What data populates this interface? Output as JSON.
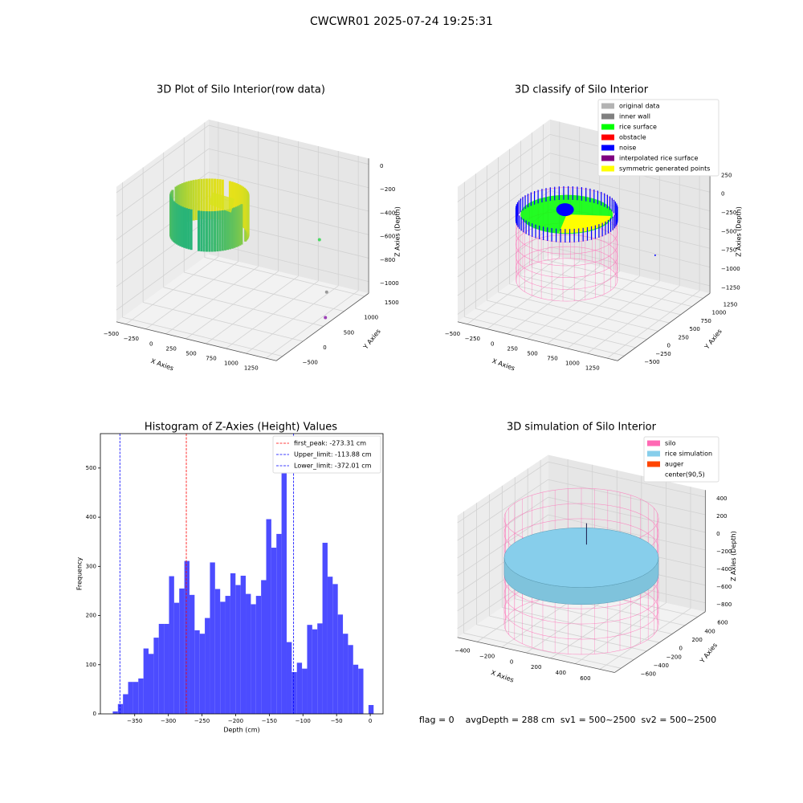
{
  "title": "CWCWR01 2025-07-24 19:25:31",
  "footer": "flag = 0    avgDepth = 288 cm  sv1 = 500~2500  sv2 = 500~2500",
  "chart_data": [
    {
      "type": "scatter3d",
      "title": "3D Plot of Silo Interior(row data)",
      "xlabel": "X Axies",
      "ylabel": "Y Axies",
      "zlabel": "Z Axies (Depth)",
      "xlim": [
        -620,
        1380
      ],
      "ylim": [
        -650,
        1600
      ],
      "zlim": [
        -1100,
        50
      ],
      "xticks": [
        {
          "value": -500,
          "label": "−500"
        },
        {
          "value": -250,
          "label": "−250"
        },
        0,
        250,
        500,
        750,
        1000,
        1250
      ],
      "yticks": [
        {
          "value": -500,
          "label": "−500"
        },
        0,
        500,
        1000,
        1500
      ],
      "zticks": [
        0,
        {
          "value": -200,
          "label": "−200"
        },
        {
          "value": -400,
          "label": "−400"
        },
        {
          "value": -600,
          "label": "−600"
        },
        {
          "value": -800,
          "label": "−800"
        },
        {
          "value": -1000,
          "label": "−1000"
        }
      ]
    },
    {
      "type": "scatter3d",
      "title": "3D classify of Silo Interior",
      "xlabel": "X Axies",
      "ylabel": "Y Axies",
      "zlabel": "Z Axies (Depth)",
      "xlim": [
        -620,
        1380
      ],
      "ylim": [
        -650,
        1400
      ],
      "zlim": [
        -1350,
        450
      ],
      "xticks": [
        {
          "value": -500,
          "label": "−500"
        },
        {
          "value": -250,
          "label": "−250"
        },
        0,
        250,
        500,
        750,
        1000,
        1250
      ],
      "yticks": [
        {
          "value": -500,
          "label": "−500"
        },
        {
          "value": -250,
          "label": "−250"
        },
        0,
        250,
        500,
        750,
        1000,
        1250
      ],
      "zticks": [
        250,
        0,
        {
          "value": -250,
          "label": "−250"
        },
        {
          "value": -500,
          "label": "−500"
        },
        {
          "value": -750,
          "label": "−750"
        },
        {
          "value": -1000,
          "label": "−1000"
        },
        {
          "value": -1250,
          "label": "−1250"
        }
      ],
      "legend": [
        {
          "name": "original data",
          "color": "#b3b3b3"
        },
        {
          "name": "inner wall",
          "color": "#808080"
        },
        {
          "name": "rice surface",
          "color": "#00ff00"
        },
        {
          "name": "obstacle",
          "color": "#ff0000"
        },
        {
          "name": "noise",
          "color": "#0000ff"
        },
        {
          "name": "interpolated rice surface",
          "color": "#800080"
        },
        {
          "name": "symmetric generated points",
          "color": "#ffff00"
        }
      ]
    },
    {
      "type": "histogram",
      "title": "Histogram of Z-Axies (Height) Values",
      "xlabel": "Depth (cm)",
      "ylabel": "Frequency",
      "color": "#4c4cff",
      "bins": [
        -382.6,
        -375.0,
        -367.4,
        -359.8,
        -352.2,
        -344.6,
        -337.0,
        -329.4,
        -321.8,
        -314.2,
        -306.6,
        -299.0,
        -291.4,
        -283.8,
        -276.2,
        -268.6,
        -261.0,
        -253.4,
        -245.8,
        -238.2,
        -230.6,
        -223.0,
        -215.4,
        -207.8,
        -200.2,
        -192.6,
        -185.0,
        -177.4,
        -169.8,
        -162.2,
        -154.6,
        -147.0,
        -139.4,
        -131.8,
        -124.2,
        -116.6,
        -109.0,
        -101.4,
        -93.8,
        -86.2,
        -78.6,
        -71.0,
        -63.4,
        -55.8,
        -48.2,
        -40.6,
        -33.0,
        -25.4,
        -17.8,
        -10.2,
        -2.6,
        5.0
      ],
      "values": [
        5,
        20,
        40,
        65,
        65,
        72,
        133,
        122,
        155,
        183,
        183,
        280,
        226,
        255,
        311,
        242,
        170,
        163,
        195,
        308,
        254,
        228,
        240,
        286,
        262,
        281,
        244,
        223,
        240,
        272,
        396,
        338,
        366,
        546,
        146,
        85,
        104,
        92,
        181,
        172,
        184,
        348,
        279,
        264,
        202,
        163,
        140,
        100,
        92,
        0,
        18
      ],
      "xlim": [
        -401,
        19
      ],
      "ylim": [
        0,
        570
      ],
      "xticks": [
        {
          "value": -350,
          "label": "−350"
        },
        {
          "value": -300,
          "label": "−300"
        },
        {
          "value": -250,
          "label": "−250"
        },
        {
          "value": -200,
          "label": "−200"
        },
        {
          "value": -150,
          "label": "−150"
        },
        {
          "value": -100,
          "label": "−100"
        },
        {
          "value": -50,
          "label": "−50"
        },
        0
      ],
      "yticks": [
        0,
        100,
        200,
        300,
        400,
        500
      ],
      "vlines": [
        {
          "name": "first_peak: -273.31 cm",
          "value": -273.31,
          "color": "#ff0000"
        },
        {
          "name": "Upper_limit: -113.88 cm",
          "value": -113.88,
          "color": "#0000ff"
        },
        {
          "name": "Lower_limit: -372.01 cm",
          "value": -372.01,
          "color": "#0000ff"
        }
      ],
      "legend_position": "upper right"
    },
    {
      "type": "surface3d",
      "title": "3D simulation of Silo Interior",
      "xlabel": "X Axies",
      "ylabel": "Y Axies",
      "zlabel": "Z Axies (Depth)",
      "xlim": [
        -560,
        720
      ],
      "ylim": [
        -700,
        720
      ],
      "zlim": [
        -900,
        480
      ],
      "xticks": [
        {
          "value": -400,
          "label": "−400"
        },
        {
          "value": -200,
          "label": "−200"
        },
        0,
        200,
        400,
        600
      ],
      "yticks": [
        {
          "value": -600,
          "label": "−600"
        },
        {
          "value": -400,
          "label": "−400"
        },
        {
          "value": -200,
          "label": "−200"
        },
        0,
        200,
        400,
        600
      ],
      "zticks": [
        400,
        200,
        0,
        {
          "value": -200,
          "label": "−200"
        },
        {
          "value": -400,
          "label": "−400"
        },
        {
          "value": -600,
          "label": "−600"
        },
        {
          "value": -800,
          "label": "−800"
        }
      ],
      "legend": [
        {
          "name": "silo",
          "color": "#ff69b4"
        },
        {
          "name": "rice simulation",
          "color": "#87ceeb"
        },
        {
          "name": "auger",
          "color": "#ff4500"
        },
        {
          "name": "center(90,5)",
          "color": "#ffffff"
        }
      ]
    }
  ]
}
